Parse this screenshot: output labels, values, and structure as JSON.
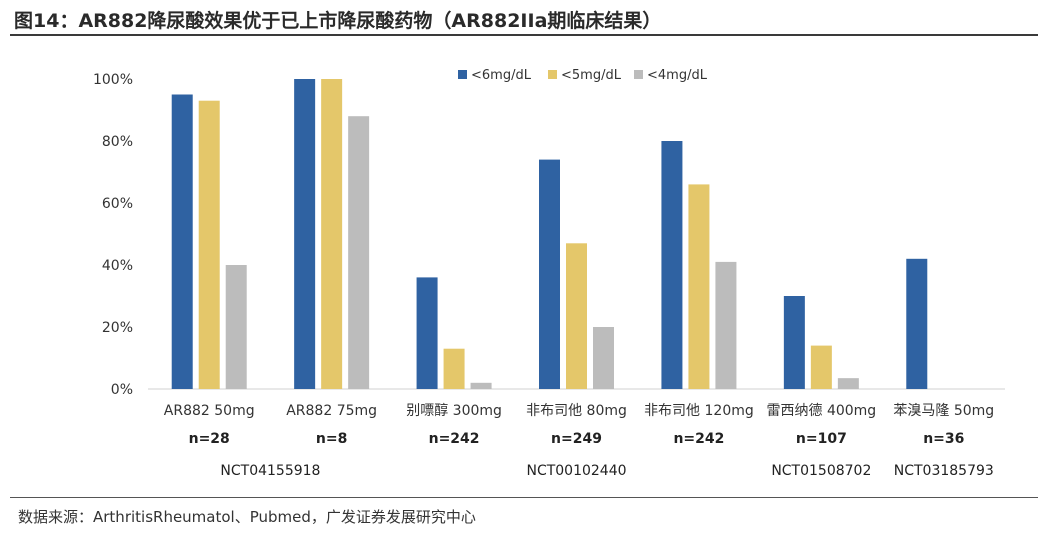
{
  "figure": {
    "title": "图14：AR882降尿酸效果优于已上市降尿酸药物（AR882IIa期临床结果）",
    "source": "数据来源：ArthritisRheumatol、Pubmed，广发证券发展研究中心"
  },
  "colors": {
    "s1": "#2f62a2",
    "s2": "#e4c76a",
    "s3": "#bcbcbc",
    "axis": "#d0d0d0"
  },
  "chart_data": {
    "type": "bar",
    "categories": [
      "AR882 50mg",
      "AR882 75mg",
      "别嘌醇 300mg",
      "非布司他 80mg",
      "非布司他 120mg",
      "雷西纳德 400mg",
      "苯溴马隆 50mg"
    ],
    "series": [
      {
        "name": "<6mg/dL",
        "values": [
          95,
          100,
          36,
          74,
          80,
          30,
          42
        ]
      },
      {
        "name": "<5mg/dL",
        "values": [
          93,
          100,
          13,
          47,
          66,
          14,
          null
        ]
      },
      {
        "name": "<4mg/dL",
        "values": [
          40,
          88,
          2,
          20,
          41,
          3.5,
          null
        ]
      }
    ],
    "sample_sizes": [
      "n=28",
      "n=8",
      "n=242",
      "n=249",
      "n=242",
      "n=107",
      "n=36"
    ],
    "trial_ids": [
      {
        "label": "NCT04155918",
        "span": [
          0,
          1
        ]
      },
      {
        "label": "NCT00102440",
        "span": [
          2,
          4
        ]
      },
      {
        "label": "NCT01508702",
        "span": [
          5,
          5
        ]
      },
      {
        "label": "NCT03185793",
        "span": [
          6,
          6
        ]
      }
    ],
    "y_ticks": [
      "0%",
      "20%",
      "40%",
      "60%",
      "80%",
      "100%"
    ],
    "ylim": [
      0,
      100
    ],
    "legend_position": "top-center",
    "grid": false
  }
}
